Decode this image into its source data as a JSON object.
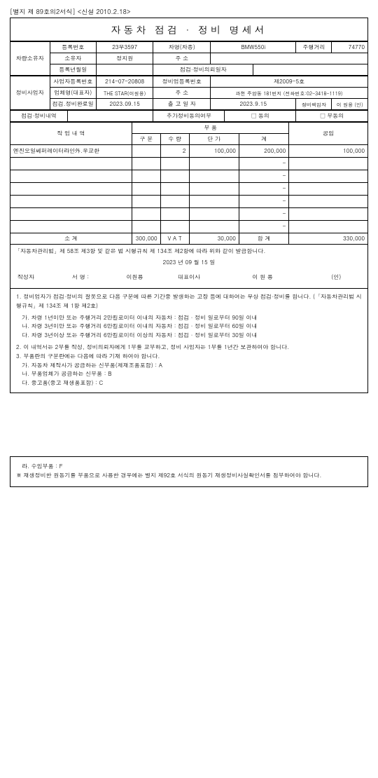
{
  "form_label": "[별지 제 89호의2서식] <신설 2010.2.18>",
  "title": "자동차 점검 · 정비 명세서",
  "owner": {
    "group_label": "차량소유자",
    "reg_no_label": "등록번호",
    "reg_no": "23무3597",
    "car_name_label": "차명(차종)",
    "car_name": "BMW550i",
    "mileage_label": "주행거리",
    "mileage": "74770",
    "owner_label": "소유자",
    "owner": "정지원",
    "addr_label": "주    소",
    "addr": "",
    "reg_date_label": "등록년월일",
    "reg_date": "",
    "req_date_label": "점검·정비의뢰일자",
    "req_date": ""
  },
  "shop": {
    "group_label": "정비사업자",
    "biz_no_label": "사업자등록번호",
    "biz_no": "214-07-20808",
    "shop_reg_label": "정비업등록번호",
    "shop_reg": "제2009-5호",
    "comp_label": "업체명(대표자)",
    "comp": "THE STAR(이원용)",
    "addr_label": "주    소",
    "addr": "과천 주암동 181번지 (전화번호:02-3418-1119)",
    "done_label": "점검.정비완료일",
    "done": "2023.09.15",
    "out_label": "출 고 일 자",
    "out": "2023.9.15",
    "resp_label": "정비책임자",
    "resp": "이 원용 (인)"
  },
  "inspection": {
    "label": "점검·정비내역",
    "value": "",
    "extra_label": "추가정비동의여부",
    "agree_label": "□ 동의",
    "disagree_label": "□ 부동의"
  },
  "columns": {
    "work": "작 업 내 역",
    "parts": "부  품",
    "labor": "공임",
    "gubun": "구  분",
    "qty": "수  량",
    "unit": "단   가",
    "sum": "계"
  },
  "rows": [
    {
      "name": "엔진오일쎄퍼레이터라인外.우교환",
      "gubun": "",
      "qty": "2",
      "unit": "100,000",
      "sum": "200,000",
      "labor": "100,000"
    }
  ],
  "empty_rows": 6,
  "subtotal": {
    "label": "소    계",
    "parts_total": "300,000",
    "vat_label": "V A T",
    "vat": "30,000",
    "total_label": "합   계",
    "total": "330,000"
  },
  "decl": {
    "law": "「자동차관리법」제 58조 제3항 및 같은 법 시행규칙 제 134조 제2항에 따라 위와 같이 발급합니다.",
    "date": "2023 년      09 월      15 일",
    "writer_label": "작성자",
    "sign_label": "서  명  :",
    "name1": "이원용",
    "pos": "대표이사",
    "name2": "이 원 용",
    "seal": "(인)"
  },
  "notes": {
    "n1": "1. 정비업자가 점검·정비의 잘못으로 다음 구분에 따른 기간중 발생하는 고장 등에 대하여는 무상 점검·정비를 합니다. (「자동차관리법 시행규칙」제 134조 제 1항 제2호)",
    "n1a": "가. 차령 1년미만 또는 주행거리 2만킬로미터 이내의 자동차 : 점검 · 정비 일로부터 90일 이내",
    "n1b": "나. 차령 3년미만 또는 주행거리 6만킬로미터 이내의 자동차 : 점검 · 정비 일로부터 60일 이내",
    "n1c": "다. 차령 3년이상 또는 주행거리 6만킬로미터 이상의 자동차 : 점검 · 정비 일로부터 30일 이내",
    "n2": "2. 이 내역서는 2부를 작성, 정비의뢰자에게 1부를 교부하고, 정비 사업자는 1부를 1년간 보관하여야 합니다.",
    "n3": "3. 부품란의 구분란에는 다음에 따라 기재 하여야 합니다.",
    "n3a": "가. 자동차 제작사가 공급하는 신부품(제재조품포함) : A",
    "n3b": "나. 부품업체가 공급하는 신부품 : B",
    "n3c": "다. 중고품(중고 재생품포함) : C"
  },
  "footer": {
    "f1": "라. 수입부품 : F",
    "f2": "※ 재생정비한 원동기를 부품으로 사용한 경우에는 별지 제92호 서식의 원동기 재생정비사실확인서를 첨부하여야 합니다."
  }
}
